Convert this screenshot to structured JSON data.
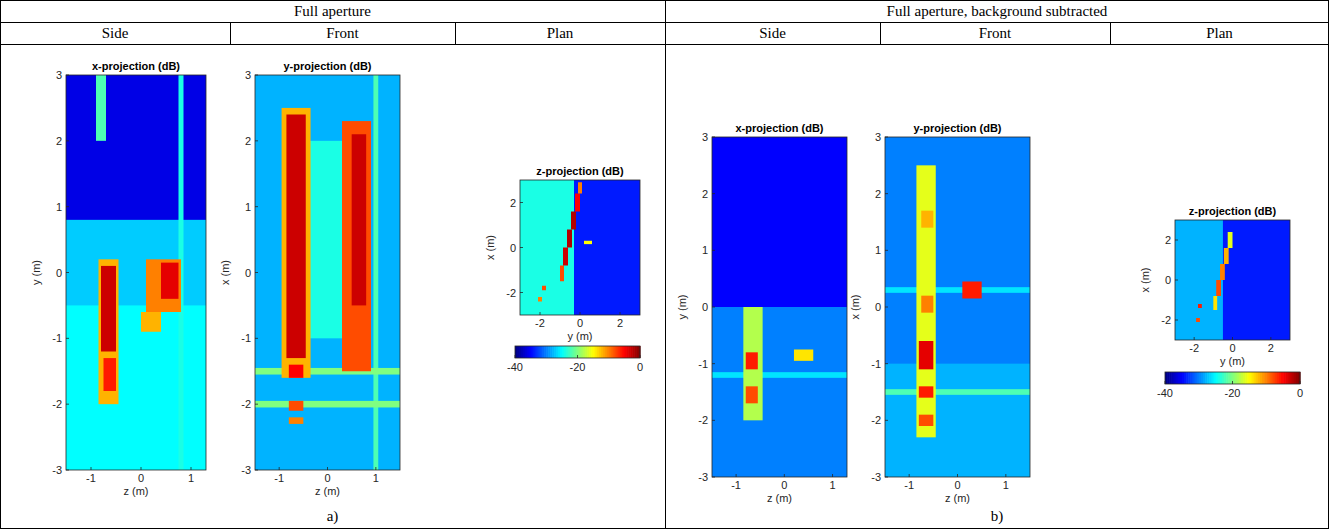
{
  "table": {
    "groups": [
      {
        "title": "Full aperture",
        "columns": [
          "Side",
          "Front",
          "Plan"
        ],
        "caption": "a)"
      },
      {
        "title": "Full aperture, background subtracted",
        "columns": [
          "Side",
          "Front",
          "Plan"
        ],
        "caption": "b)"
      }
    ]
  },
  "chart_data": [
    {
      "type": "heatmap",
      "title": "x-projection (dB)",
      "x_label": "z (m)",
      "y_label": "y (m)",
      "xlim": [
        -1.5,
        1.3
      ],
      "ylim": [
        -3,
        3
      ],
      "xticks": [
        -1,
        0,
        1
      ],
      "yticks": [
        -3,
        -2,
        -1,
        0,
        1,
        2,
        3
      ],
      "cells": [
        {
          "x": [
            -1.5,
            1.3
          ],
          "y": [
            -3,
            3
          ],
          "value": -36
        },
        {
          "x": [
            -1.5,
            1.3
          ],
          "y": [
            -3,
            0.8
          ],
          "value": -27
        },
        {
          "x": [
            -1.5,
            1.3
          ],
          "y": [
            -3,
            -0.5
          ],
          "value": -25
        },
        {
          "x": [
            -0.9,
            -0.7
          ],
          "y": [
            2,
            3
          ],
          "value": -22
        },
        {
          "x": [
            0.75,
            0.85
          ],
          "y": [
            -3,
            3
          ],
          "value": -24
        },
        {
          "x": [
            -0.85,
            -0.45
          ],
          "y": [
            -2,
            0.2
          ],
          "value": -12
        },
        {
          "x": [
            -0.8,
            -0.5
          ],
          "y": [
            -1.2,
            0.1
          ],
          "value": -3
        },
        {
          "x": [
            -0.75,
            -0.5
          ],
          "y": [
            -1.8,
            -1.3
          ],
          "value": -6
        },
        {
          "x": [
            0.1,
            0.8
          ],
          "y": [
            -0.6,
            0.2
          ],
          "value": -10
        },
        {
          "x": [
            0.4,
            0.75
          ],
          "y": [
            -0.4,
            0.15
          ],
          "value": -4
        },
        {
          "x": [
            0,
            0.4
          ],
          "y": [
            -0.9,
            -0.6
          ],
          "value": -12
        }
      ]
    },
    {
      "type": "heatmap",
      "title": "y-projection (dB)",
      "x_label": "z (m)",
      "y_label": "x (m)",
      "xlim": [
        -1.5,
        1.5
      ],
      "ylim": [
        -3,
        3
      ],
      "xticks": [
        -1,
        0,
        1
      ],
      "yticks": [
        -3,
        -2,
        -1,
        0,
        1,
        2,
        3
      ],
      "cells": [
        {
          "x": [
            -1.5,
            1.5
          ],
          "y": [
            -3,
            3
          ],
          "value": -28
        },
        {
          "x": [
            -0.4,
            0.3
          ],
          "y": [
            -1,
            2
          ],
          "value": -24
        },
        {
          "x": [
            0.95,
            1.05
          ],
          "y": [
            -3,
            3
          ],
          "value": -22
        },
        {
          "x": [
            -1.5,
            1.5
          ],
          "y": [
            -1.55,
            -1.45
          ],
          "value": -20
        },
        {
          "x": [
            -1.5,
            1.5
          ],
          "y": [
            -2.05,
            -1.95
          ],
          "value": -20
        },
        {
          "x": [
            -0.95,
            -0.35
          ],
          "y": [
            -1.6,
            2.5
          ],
          "value": -12
        },
        {
          "x": [
            -0.85,
            -0.45
          ],
          "y": [
            -1.3,
            2.4
          ],
          "value": -3
        },
        {
          "x": [
            0.3,
            0.9
          ],
          "y": [
            -1.5,
            2.3
          ],
          "value": -8
        },
        {
          "x": [
            0.5,
            0.8
          ],
          "y": [
            -0.5,
            2.1
          ],
          "value": -3
        },
        {
          "x": [
            -0.8,
            -0.5
          ],
          "y": [
            -1.6,
            -1.4
          ],
          "value": -5
        },
        {
          "x": [
            -0.8,
            -0.5
          ],
          "y": [
            -2.1,
            -1.95
          ],
          "value": -8
        },
        {
          "x": [
            -0.8,
            -0.5
          ],
          "y": [
            -2.3,
            -2.2
          ],
          "value": -10
        }
      ]
    },
    {
      "type": "heatmap",
      "title": "z-projection (dB)",
      "x_label": "y (m)",
      "y_label": "x (m)",
      "xlim": [
        -3,
        3
      ],
      "ylim": [
        -3,
        3
      ],
      "xticks": [
        -2,
        0,
        2
      ],
      "yticks": [
        -2,
        0,
        2
      ],
      "color_range": [
        -40,
        0
      ],
      "color_ticks": [
        -40,
        -20,
        0
      ],
      "cells": [
        {
          "x": [
            -3,
            3
          ],
          "y": [
            -3,
            3
          ],
          "value": -34
        },
        {
          "x": [
            -3,
            -0.3
          ],
          "y": [
            -3,
            3
          ],
          "value": -24
        },
        {
          "x": [
            0.2,
            0.6
          ],
          "y": [
            0.15,
            0.3
          ],
          "value": -15
        },
        {
          "x": [
            -1,
            -0.8
          ],
          "y": [
            -1.5,
            -0.8
          ],
          "value": -8
        },
        {
          "x": [
            -0.85,
            -0.6
          ],
          "y": [
            -0.8,
            0
          ],
          "value": -3
        },
        {
          "x": [
            -0.65,
            -0.4
          ],
          "y": [
            0,
            0.8
          ],
          "value": -2
        },
        {
          "x": [
            -0.45,
            -0.2
          ],
          "y": [
            0.8,
            1.6
          ],
          "value": -2
        },
        {
          "x": [
            -0.25,
            0
          ],
          "y": [
            1.6,
            2.4
          ],
          "value": -5
        },
        {
          "x": [
            -0.1,
            0.1
          ],
          "y": [
            2.4,
            2.9
          ],
          "value": -10
        },
        {
          "x": [
            -1.9,
            -1.7
          ],
          "y": [
            -1.9,
            -1.7
          ],
          "value": -8
        },
        {
          "x": [
            -2.1,
            -1.9
          ],
          "y": [
            -2.4,
            -2.2
          ],
          "value": -10
        }
      ]
    },
    {
      "type": "heatmap",
      "title": "x-projection (dB)",
      "x_label": "z (m)",
      "y_label": "y (m)",
      "xlim": [
        -1.5,
        1.3
      ],
      "ylim": [
        -3,
        3
      ],
      "xticks": [
        -1,
        0,
        1
      ],
      "yticks": [
        -3,
        -2,
        -1,
        0,
        1,
        2,
        3
      ],
      "cells": [
        {
          "x": [
            -1.5,
            1.3
          ],
          "y": [
            -3,
            3
          ],
          "value": -35
        },
        {
          "x": [
            -1.5,
            1.3
          ],
          "y": [
            -3,
            0
          ],
          "value": -30
        },
        {
          "x": [
            -1.5,
            1.3
          ],
          "y": [
            -1.25,
            -1.15
          ],
          "value": -26
        },
        {
          "x": [
            -0.85,
            -0.45
          ],
          "y": [
            -2,
            0
          ],
          "value": -18
        },
        {
          "x": [
            -0.8,
            -0.55
          ],
          "y": [
            -1.1,
            -0.8
          ],
          "value": -6
        },
        {
          "x": [
            -0.8,
            -0.55
          ],
          "y": [
            -1.7,
            -1.4
          ],
          "value": -8
        },
        {
          "x": [
            0.2,
            0.6
          ],
          "y": [
            -0.95,
            -0.75
          ],
          "value": -14
        }
      ]
    },
    {
      "type": "heatmap",
      "title": "y-projection (dB)",
      "x_label": "z (m)",
      "y_label": "x (m)",
      "xlim": [
        -1.5,
        1.5
      ],
      "ylim": [
        -3,
        3
      ],
      "xticks": [
        -1,
        0,
        1
      ],
      "yticks": [
        -3,
        -2,
        -1,
        0,
        1,
        2,
        3
      ],
      "cells": [
        {
          "x": [
            -1.5,
            1.5
          ],
          "y": [
            -3,
            3
          ],
          "value": -30
        },
        {
          "x": [
            -1.5,
            1.5
          ],
          "y": [
            -3,
            -1
          ],
          "value": -28
        },
        {
          "x": [
            -1.5,
            1.5
          ],
          "y": [
            -1.55,
            -1.45
          ],
          "value": -22
        },
        {
          "x": [
            -1.5,
            1.5
          ],
          "y": [
            0.25,
            0.35
          ],
          "value": -26
        },
        {
          "x": [
            -0.85,
            -0.45
          ],
          "y": [
            -2.3,
            2.5
          ],
          "value": -16
        },
        {
          "x": [
            -0.8,
            -0.5
          ],
          "y": [
            -1.1,
            -0.6
          ],
          "value": -4
        },
        {
          "x": [
            -0.75,
            -0.5
          ],
          "y": [
            -0.1,
            0.2
          ],
          "value": -10
        },
        {
          "x": [
            -0.75,
            -0.5
          ],
          "y": [
            1.4,
            1.7
          ],
          "value": -12
        },
        {
          "x": [
            -0.8,
            -0.5
          ],
          "y": [
            -1.6,
            -1.4
          ],
          "value": -6
        },
        {
          "x": [
            -0.8,
            -0.5
          ],
          "y": [
            -2.1,
            -1.9
          ],
          "value": -8
        },
        {
          "x": [
            0.1,
            0.5
          ],
          "y": [
            0.15,
            0.45
          ],
          "value": -6
        }
      ]
    },
    {
      "type": "heatmap",
      "title": "z-projection (dB)",
      "x_label": "y (m)",
      "y_label": "x (m)",
      "xlim": [
        -3,
        3
      ],
      "ylim": [
        -3,
        3
      ],
      "xticks": [
        -2,
        0,
        2
      ],
      "yticks": [
        -2,
        0,
        2
      ],
      "color_range": [
        -40,
        0
      ],
      "color_ticks": [
        -40,
        -20,
        0
      ],
      "cells": [
        {
          "x": [
            -3,
            3
          ],
          "y": [
            -3,
            3
          ],
          "value": -34
        },
        {
          "x": [
            -3,
            -0.5
          ],
          "y": [
            -3,
            3
          ],
          "value": -28
        },
        {
          "x": [
            -1,
            -0.8
          ],
          "y": [
            -1.5,
            -0.8
          ],
          "value": -14
        },
        {
          "x": [
            -0.85,
            -0.6
          ],
          "y": [
            -0.8,
            0
          ],
          "value": -8
        },
        {
          "x": [
            -0.65,
            -0.4
          ],
          "y": [
            0,
            0.8
          ],
          "value": -10
        },
        {
          "x": [
            -0.45,
            -0.2
          ],
          "y": [
            0.8,
            1.6
          ],
          "value": -12
        },
        {
          "x": [
            -0.25,
            0
          ],
          "y": [
            1.6,
            2.4
          ],
          "value": -16
        },
        {
          "x": [
            -1.8,
            -1.6
          ],
          "y": [
            -1.4,
            -1.2
          ],
          "value": -6
        },
        {
          "x": [
            -1.9,
            -1.7
          ],
          "y": [
            -2.1,
            -1.9
          ],
          "value": -8
        }
      ]
    }
  ]
}
